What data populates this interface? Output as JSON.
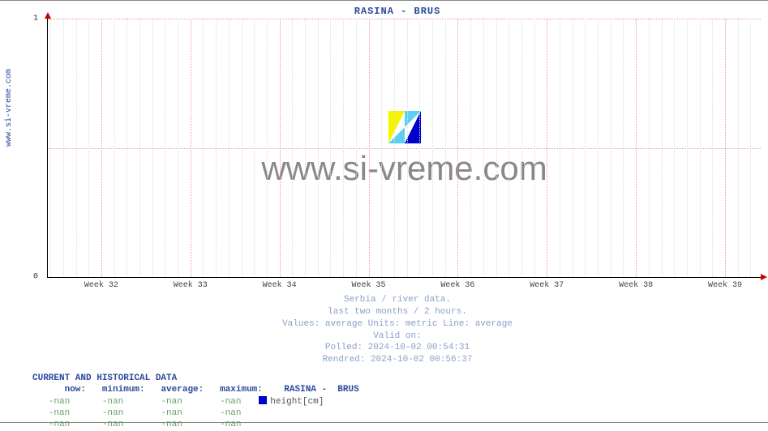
{
  "outer_ylabel": "www.si-vreme.com",
  "chart": {
    "title": "RASINA -  BRUS",
    "type": "line",
    "ylim": [
      0,
      1
    ],
    "yticks": [
      0,
      1
    ],
    "xticks": [
      "Week 32",
      "Week 33",
      "Week 34",
      "Week 35",
      "Week 36",
      "Week 37",
      "Week 38",
      "Week 39"
    ],
    "x_major_positions_pct": [
      7.5,
      20,
      32.5,
      45,
      57.5,
      70,
      82.5,
      95
    ],
    "subgrid_per_major": 7,
    "grid_color": "#ee9999",
    "subgrid_color": "#dddddd",
    "axis_color": "#000000",
    "arrow_color": "#cc0000",
    "background_color": "#ffffff",
    "h_dotted_pcts": [
      0,
      50
    ],
    "watermark_text": "www.si-vreme.com",
    "watermark_color": "#888888",
    "logo_colors": {
      "a": "#f5f500",
      "b": "#40c8f0",
      "c": "#0000cc"
    },
    "series": []
  },
  "meta": {
    "line1": "Serbia / river data.",
    "line2": "last two months / 2 hours.",
    "line3": "Values: average  Units: metric  Line: average",
    "line4": "Valid on:",
    "line5": "Polled: 2024-10-02 00:54:31",
    "line6": "Rendred: 2024-10-02 00:56:37"
  },
  "table": {
    "title": "CURRENT AND HISTORICAL DATA",
    "columns": [
      "now:",
      "minimum:",
      "average:",
      "maximum:"
    ],
    "series_name": "RASINA -  BRUS",
    "legend_color": "#0000cc",
    "row_label": "height[cm]",
    "rows": [
      [
        "-nan",
        "-nan",
        "-nan",
        "-nan"
      ],
      [
        "-nan",
        "-nan",
        "-nan",
        "-nan"
      ],
      [
        "-nan",
        "-nan",
        "-nan",
        "-nan"
      ]
    ]
  }
}
